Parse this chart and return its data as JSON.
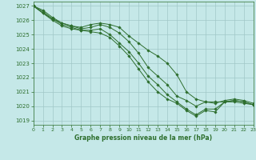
{
  "background_color": "#c5e8e8",
  "grid_color": "#a0c8c8",
  "line_color": "#2d6e2d",
  "marker_color": "#2d6e2d",
  "title": "Graphe pression niveau de la mer (hPa)",
  "xlim": [
    0,
    23
  ],
  "ylim": [
    1018.7,
    1027.3
  ],
  "yticks": [
    1019,
    1020,
    1021,
    1022,
    1023,
    1024,
    1025,
    1026,
    1027
  ],
  "xticks": [
    0,
    1,
    2,
    3,
    4,
    5,
    6,
    7,
    8,
    9,
    10,
    11,
    12,
    13,
    14,
    15,
    16,
    17,
    18,
    19,
    20,
    21,
    22,
    23
  ],
  "series": [
    [
      1027.0,
      1026.7,
      1026.2,
      1025.8,
      1025.6,
      1025.5,
      1025.7,
      1025.8,
      1025.7,
      1025.5,
      1024.9,
      1024.4,
      1023.9,
      1023.5,
      1023.0,
      1022.2,
      1021.0,
      1020.5,
      1020.3,
      1020.3,
      1020.3,
      1020.4,
      1020.3,
      1020.1
    ],
    [
      1027.0,
      1026.6,
      1026.1,
      1025.8,
      1025.6,
      1025.4,
      1025.5,
      1025.7,
      1025.5,
      1025.1,
      1024.5,
      1023.7,
      1022.7,
      1022.1,
      1021.5,
      1020.7,
      1020.4,
      1020.0,
      1020.3,
      1020.2,
      1020.4,
      1020.5,
      1020.4,
      1020.2
    ],
    [
      1027.0,
      1026.5,
      1026.1,
      1025.7,
      1025.5,
      1025.3,
      1025.3,
      1025.4,
      1025.0,
      1024.4,
      1023.8,
      1023.0,
      1022.1,
      1021.5,
      1020.8,
      1020.3,
      1019.8,
      1019.4,
      1019.8,
      1019.8,
      1020.3,
      1020.4,
      1020.3,
      1020.1
    ],
    [
      1027.0,
      1026.5,
      1026.0,
      1025.6,
      1025.4,
      1025.3,
      1025.2,
      1025.1,
      1024.8,
      1024.2,
      1023.5,
      1022.6,
      1021.7,
      1021.0,
      1020.5,
      1020.2,
      1019.7,
      1019.3,
      1019.7,
      1019.6,
      1020.3,
      1020.3,
      1020.2,
      1020.1
    ]
  ]
}
